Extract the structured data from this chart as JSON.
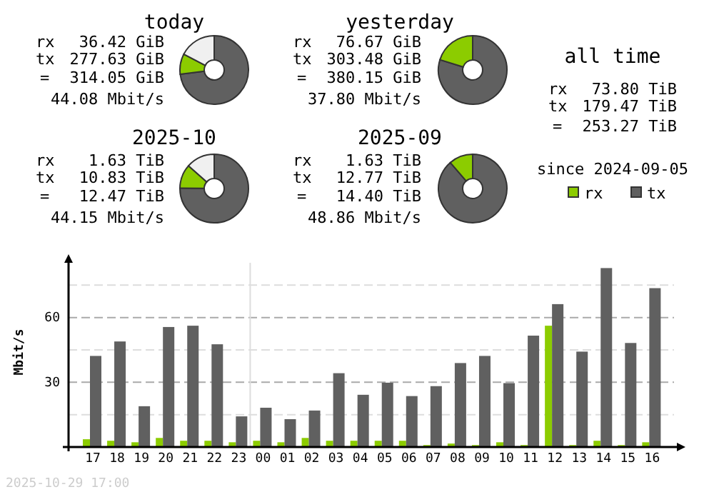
{
  "chart_data": [
    {
      "type": "donut",
      "title": "today",
      "categories": [
        null,
        null,
        null
      ],
      "values": [
        9.58,
        73.03,
        17.39
      ],
      "colors": [
        "#8ccc00",
        "#606060",
        "#f0f0f0"
      ],
      "annotations": [
        "rx",
        "36.42 GiB",
        "tx",
        "277.63 GiB",
        "=",
        "314.05 GiB",
        "44.08 Mbit/s"
      ]
    },
    {
      "type": "donut",
      "title": "yesterday",
      "categories": [
        null,
        null
      ],
      "values": [
        20.17,
        79.83
      ],
      "colors": [
        "#8ccc00",
        "#606060"
      ],
      "annotations": [
        "rx",
        "76.67 GiB",
        "tx",
        "303.48 GiB",
        "=",
        "380.15 GiB",
        "37.80 Mbit/s"
      ]
    },
    {
      "type": "other",
      "title": "all time",
      "annotations": [
        "rx",
        "73.80 TiB",
        "tx",
        "179.47 TiB",
        "=",
        "253.27 TiB",
        "since 2024-09-05"
      ]
    },
    {
      "type": "donut",
      "title": "2025-10",
      "categories": [
        null,
        null,
        null
      ],
      "values": [
        11.32,
        75.21,
        13.47
      ],
      "colors": [
        "#8ccc00",
        "#606060",
        "#f0f0f0"
      ],
      "annotations": [
        "rx",
        "1.63 TiB",
        "tx",
        "10.83 TiB",
        "=",
        "12.47 TiB",
        "44.15 Mbit/s"
      ]
    },
    {
      "type": "donut",
      "title": "2025-09",
      "categories": [
        null,
        null
      ],
      "values": [
        11.32,
        88.68
      ],
      "colors": [
        "#8ccc00",
        "#606060"
      ],
      "annotations": [
        "rx",
        "1.63 TiB",
        "tx",
        "12.77 TiB",
        "=",
        "14.40 TiB",
        "48.86 Mbit/s"
      ]
    },
    {
      "type": "bar",
      "ylabel": "Mbit/s",
      "categories": [
        "17",
        "18",
        "19",
        "20",
        "21",
        "22",
        "23",
        "00",
        "01",
        "02",
        "03",
        "04",
        "05",
        "06",
        "07",
        "08",
        "09",
        "10",
        "11",
        "12",
        "13",
        "14",
        "15",
        "16"
      ],
      "series": [
        {
          "name": "rx",
          "color": "#8ccc00",
          "values": [
            3.6,
            2.9,
            2.2,
            4.2,
            2.9,
            2.9,
            2.2,
            2.9,
            2.2,
            4.2,
            2.9,
            2.9,
            2.9,
            2.9,
            0.9,
            1.6,
            0.9,
            2.2,
            0.9,
            56.2,
            0.9,
            2.9,
            0.9,
            2.2
          ]
        },
        {
          "name": "tx",
          "color": "#606060",
          "values": [
            42.2,
            48.9,
            18.9,
            55.6,
            56.2,
            47.6,
            14.2,
            18.2,
            12.9,
            16.9,
            34.2,
            24.2,
            29.8,
            23.6,
            28.2,
            38.9,
            42.2,
            29.6,
            51.6,
            66.2,
            44.2,
            82.9,
            48.2,
            73.6
          ]
        }
      ],
      "ylim": [
        0,
        88
      ],
      "yticks": [
        {
          "value": 15,
          "label": null
        },
        30,
        {
          "value": 45,
          "label": null
        },
        60,
        {
          "value": 75,
          "label": null
        }
      ],
      "grid": "y",
      "legend": "top right",
      "ref_lines": [
        {
          "axis": "x",
          "value": "00",
          "label": null,
          "color": "#dddddd"
        }
      ],
      "annotations": [
        "2025-10-29 17:00"
      ]
    }
  ]
}
